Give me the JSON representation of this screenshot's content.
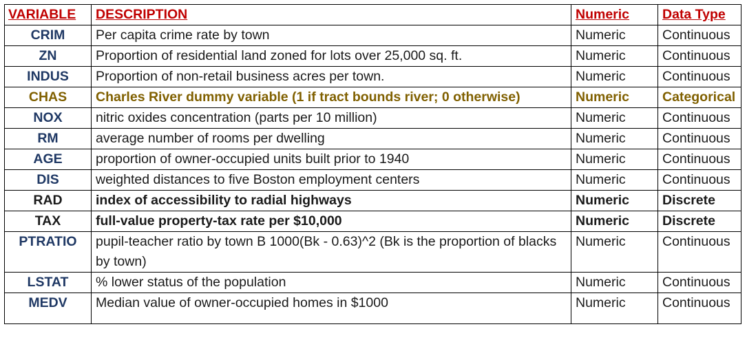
{
  "table": {
    "headers": {
      "variable": "VARIABLE",
      "description": "DESCRIPTION",
      "numeric": "Numeric",
      "data_type": "Data Type"
    },
    "rows": [
      {
        "variable": "CRIM",
        "description": "Per capita crime rate by town",
        "numeric": "Numeric",
        "data_type": "Continuous"
      },
      {
        "variable": "ZN",
        "description": "Proportion of residential land zoned for lots over 25,000 sq. ft.",
        "numeric": "Numeric",
        "data_type": "Continuous"
      },
      {
        "variable": "INDUS",
        "description": "Proportion of non-retail business acres per town.",
        "numeric": "Numeric",
        "data_type": "Continuous"
      },
      {
        "variable": "CHAS",
        "description": "Charles River dummy variable (1 if tract bounds river; 0 otherwise)",
        "numeric": "Numeric",
        "data_type": "Categorical"
      },
      {
        "variable": "NOX",
        "description": "nitric oxides concentration (parts per 10 million)",
        "numeric": "Numeric",
        "data_type": "Continuous"
      },
      {
        "variable": "RM",
        "description": "average number of rooms per dwelling",
        "numeric": "Numeric",
        "data_type": "Continuous"
      },
      {
        "variable": "AGE",
        "description": "proportion of owner-occupied units built prior to 1940",
        "numeric": "Numeric",
        "data_type": "Continuous"
      },
      {
        "variable": "DIS",
        "description": "weighted distances to five Boston employment centers",
        "numeric": "Numeric",
        "data_type": "Continuous"
      },
      {
        "variable": "RAD",
        "description": "index of accessibility to radial highways",
        "numeric": "Numeric",
        "data_type": "Discrete"
      },
      {
        "variable": "TAX",
        "description": "full-value property-tax rate per $10,000",
        "numeric": "Numeric",
        "data_type": "Discrete"
      },
      {
        "variable": "PTRATIO",
        "description": "pupil-teacher ratio by town B 1000(Bk - 0.63)^2 (Bk is the proportion of blacks by town)",
        "numeric": "Numeric",
        "data_type": "Continuous"
      },
      {
        "variable": "LSTAT",
        "description": "% lower status of the population",
        "numeric": "Numeric",
        "data_type": "Continuous"
      },
      {
        "variable": "MEDV",
        "description": "Median value of owner-occupied homes in $1000",
        "numeric": "Numeric",
        "data_type": "Continuous"
      }
    ]
  },
  "colors": {
    "header_red": "#c00000",
    "variable_navy": "#1f3864",
    "highlight_olive": "#806000"
  }
}
